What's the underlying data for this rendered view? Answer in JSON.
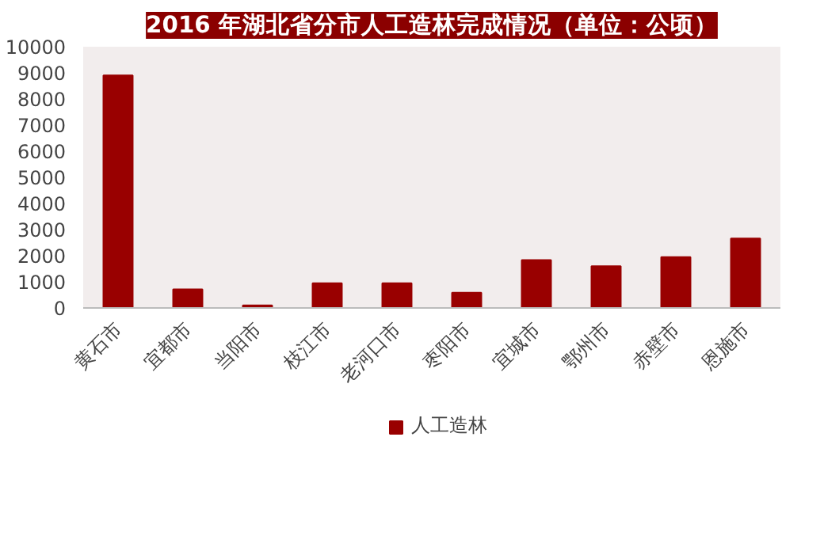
{
  "chart_data": {
    "type": "bar",
    "title": "2016 年湖北省分市人工造林完成情况（单位：公顷）",
    "categories": [
      "黄石市",
      "宜都市",
      "当阳市",
      "枝江市",
      "老河口市",
      "枣阳市",
      "宜城市",
      "鄂州市",
      "赤壁市",
      "恩施市"
    ],
    "series": [
      {
        "name": "人工造林",
        "color": "#990000",
        "values": [
          8900,
          710,
          100,
          950,
          950,
          580,
          1830,
          1600,
          1950,
          2660
        ]
      }
    ],
    "ylim": [
      0,
      10000
    ],
    "yticks": [
      0,
      1000,
      2000,
      3000,
      4000,
      5000,
      6000,
      7000,
      8000,
      9000,
      10000
    ],
    "grid": false,
    "legend": "bottom"
  }
}
